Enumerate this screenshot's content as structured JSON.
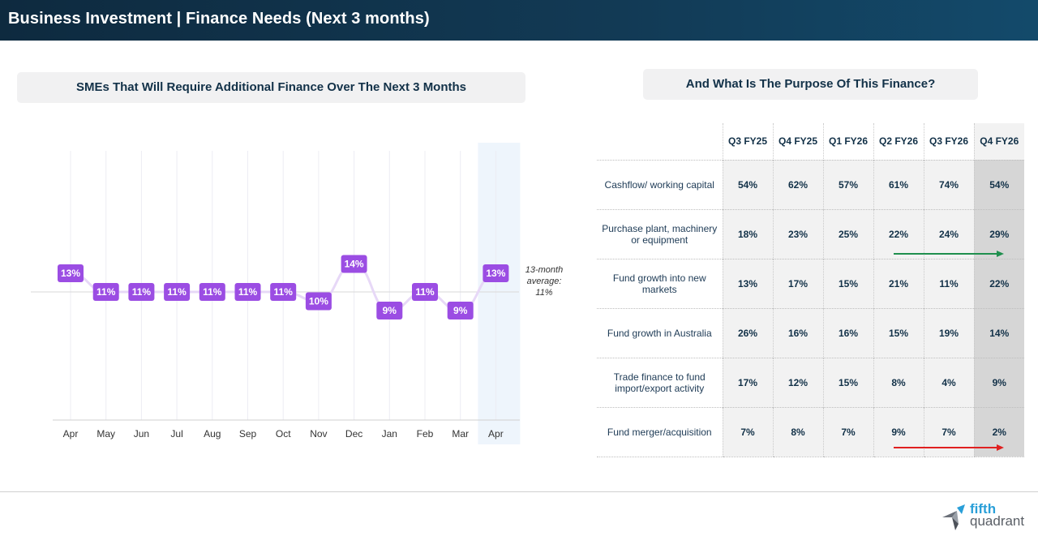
{
  "header": {
    "title": "Business Investment | Finance Needs (Next 3 months)"
  },
  "left_panel": {
    "title": "SMEs That Will Require Additional Finance Over The Next 3 Months",
    "average_note": [
      "13-month",
      "average:",
      "11%"
    ]
  },
  "right_panel": {
    "title": "And What Is The Purpose Of This Finance?"
  },
  "chart_data": [
    {
      "type": "line",
      "title": "SMEs That Will Require Additional Finance Over The Next 3 Months",
      "categories": [
        "Apr",
        "May",
        "Jun",
        "Jul",
        "Aug",
        "Sep",
        "Oct",
        "Nov",
        "Dec",
        "Jan",
        "Feb",
        "Mar",
        "Apr"
      ],
      "series": [
        {
          "values": [
            13,
            11,
            11,
            11,
            11,
            11,
            11,
            10,
            14,
            9,
            11,
            9,
            13
          ]
        }
      ],
      "labels": [
        "13%",
        "11%",
        "11%",
        "11%",
        "11%",
        "11%",
        "11%",
        "10%",
        "14%",
        "9%",
        "11%",
        "9%",
        "13%"
      ],
      "average": 11,
      "highlighted_category_index": 12,
      "ylim": [
        0,
        22
      ],
      "colors": {
        "line": "#e7d8f7",
        "label_bg": "#9b4de3",
        "highlight_band": "#eef5fc",
        "average_line": "#d9d9d9",
        "grid": "#ececf3"
      }
    },
    {
      "type": "table",
      "title": "And What Is The Purpose Of This Finance?",
      "columns": [
        "Q3 FY25",
        "Q4 FY25",
        "Q1 FY26",
        "Q2 FY26",
        "Q3 FY26",
        "Q4 FY26"
      ],
      "rows": [
        {
          "label": "Cashflow/ working capital",
          "values": [
            "54%",
            "62%",
            "57%",
            "61%",
            "74%",
            "54%"
          ]
        },
        {
          "label": "Purchase plant, machinery or equipment",
          "values": [
            "18%",
            "23%",
            "25%",
            "22%",
            "24%",
            "29%"
          ],
          "trend": "up"
        },
        {
          "label": "Fund growth into new markets",
          "values": [
            "13%",
            "17%",
            "15%",
            "21%",
            "11%",
            "22%"
          ]
        },
        {
          "label": "Fund growth in Australia",
          "values": [
            "26%",
            "16%",
            "16%",
            "15%",
            "19%",
            "14%"
          ]
        },
        {
          "label": "Trade finance to fund import/export activity",
          "values": [
            "17%",
            "12%",
            "15%",
            "8%",
            "4%",
            "9%"
          ]
        },
        {
          "label": "Fund merger/acquisition",
          "values": [
            "7%",
            "8%",
            "7%",
            "9%",
            "7%",
            "2%"
          ],
          "trend": "down"
        }
      ],
      "colors": {
        "up_arrow": "#1f8f4e",
        "down_arrow": "#e02020"
      }
    }
  ],
  "logo": {
    "line1": "fifth",
    "line2": "quadrant"
  }
}
